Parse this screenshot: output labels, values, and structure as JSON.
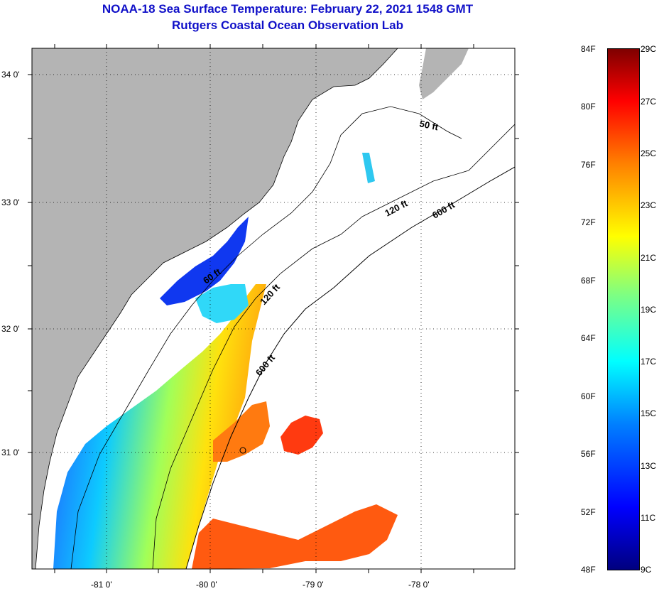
{
  "title": "NOAA-18 Sea Surface Temperature:  February 22, 2021 1548 GMT",
  "subtitle": "Rutgers Coastal Ocean Observation Lab",
  "map": {
    "lat_labels": [
      "34 0'",
      "33 0'",
      "32 0'",
      "31 0'"
    ],
    "lon_labels": [
      "-81 0'",
      "-80 0'",
      "-79 0'",
      "-78 0'"
    ],
    "isobath_labels": [
      "50 ft",
      "120 ft",
      "600 ft",
      "60 ft",
      "120 ft",
      "600 ft"
    ],
    "land_color": "#b4b4b4"
  },
  "colorbar": {
    "fahrenheit_labels": [
      "84F",
      "80F",
      "76F",
      "72F",
      "68F",
      "64F",
      "60F",
      "56F",
      "52F",
      "48F"
    ],
    "celsius_labels": [
      "29C",
      "27C",
      "25C",
      "23C",
      "21C",
      "19C",
      "17C",
      "15C",
      "13C",
      "11C",
      "9C"
    ],
    "colors": [
      "#00007f",
      "#0000ff",
      "#0080ff",
      "#00ffff",
      "#80ff80",
      "#ffff00",
      "#ff8000",
      "#ff0000",
      "#7f0000"
    ]
  }
}
